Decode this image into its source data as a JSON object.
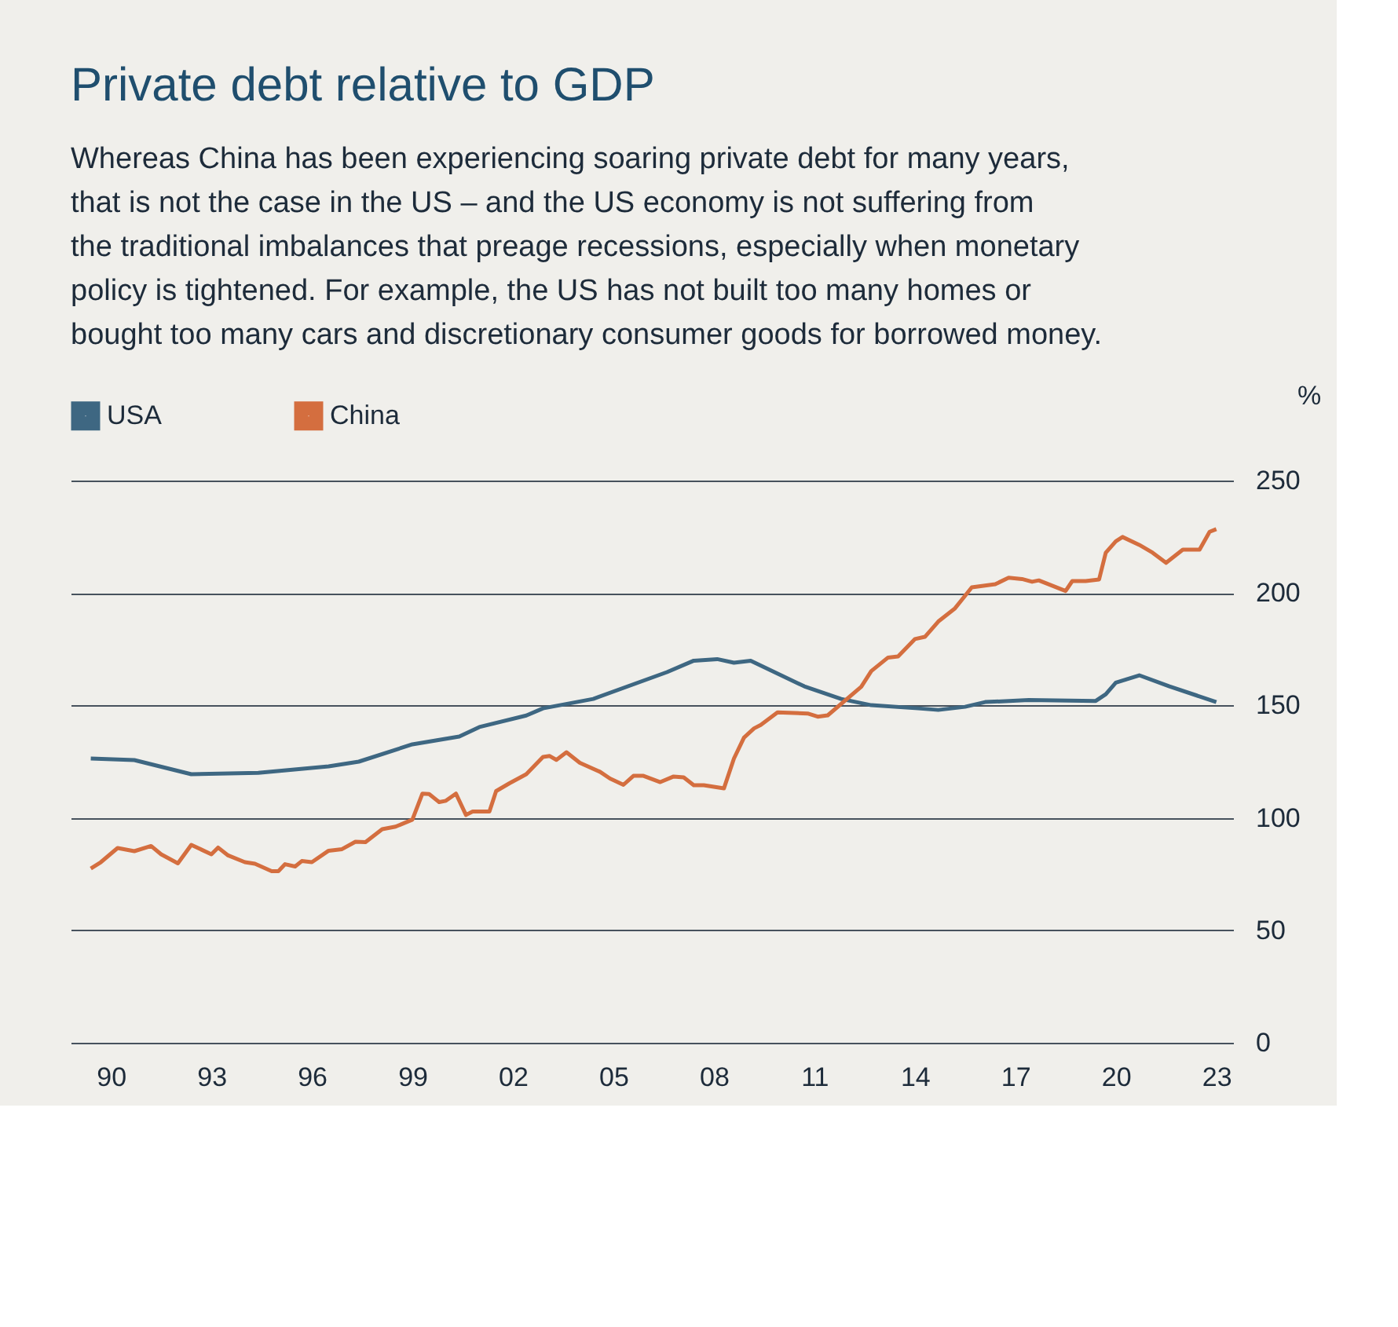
{
  "chart_data": {
    "type": "line",
    "title": "Private debt relative to GDP",
    "subtitle": "Whereas China has been experiencing soaring private debt for many years, that is not the case in the US – and the US economy is not suffering from the traditional imbalances that preage recessions, especially when monetary policy is tightened. For example, the US has not built too many homes or bought too many cars and discretionary consumer goods for borrowed money.",
    "ylabel": "%",
    "xlim": [
      1988.8,
      2023.5
    ],
    "ylim": [
      0,
      250
    ],
    "xticks": [
      {
        "value": 1990,
        "label": "90"
      },
      {
        "value": 1993,
        "label": "93"
      },
      {
        "value": 1996,
        "label": "96"
      },
      {
        "value": 1999,
        "label": "99"
      },
      {
        "value": 2002,
        "label": "02"
      },
      {
        "value": 2005,
        "label": "05"
      },
      {
        "value": 2008,
        "label": "08"
      },
      {
        "value": 2011,
        "label": "11"
      },
      {
        "value": 2014,
        "label": "14"
      },
      {
        "value": 2017,
        "label": "17"
      },
      {
        "value": 2020,
        "label": "20"
      },
      {
        "value": 2023,
        "label": "23"
      }
    ],
    "yticks": [
      0,
      50,
      100,
      150,
      200,
      250
    ],
    "grid": "y",
    "legend": "top left",
    "marker": "none",
    "line_style": "solid",
    "series": [
      {
        "name": "USA",
        "color": "#3e6782",
        "x": [
          1989.4,
          1990.7,
          1992.4,
          1994.4,
          1996.5,
          1997.4,
          1999.0,
          2000.4,
          2001.0,
          2002.4,
          2002.9,
          2004.4,
          2006.6,
          2007.4,
          2008.1,
          2008.6,
          2009.1,
          2010.7,
          2011.8,
          2012.7,
          2014.1,
          2014.7,
          2015.5,
          2016.1,
          2017.4,
          2019.4,
          2019.7,
          2020.0,
          2020.7,
          2021.6,
          2023.0
        ],
        "values": [
          126.4,
          125.7,
          119.4,
          120.0,
          122.9,
          125.0,
          132.7,
          136.2,
          140.4,
          145.5,
          148.7,
          152.9,
          164.8,
          169.9,
          170.6,
          169.0,
          169.9,
          158.5,
          152.9,
          150.1,
          148.7,
          148.0,
          149.4,
          151.5,
          152.4,
          152.0,
          155.0,
          160.1,
          163.4,
          158.5,
          151.5
        ]
      },
      {
        "name": "China",
        "color": "#d46e3f",
        "x": [
          1989.4,
          1989.7,
          1990.2,
          1990.7,
          1991.2,
          1991.5,
          1992.0,
          1992.4,
          1993.0,
          1993.2,
          1993.5,
          1994.0,
          1994.3,
          1994.8,
          1995.0,
          1995.2,
          1995.5,
          1995.7,
          1996.0,
          1996.5,
          1996.9,
          1997.3,
          1997.6,
          1998.1,
          1998.5,
          1999.0,
          1999.3,
          1999.5,
          1999.8,
          2000.0,
          2000.3,
          2000.6,
          2000.8,
          2001.3,
          2001.5,
          2001.9,
          2002.4,
          2002.9,
          2003.1,
          2003.3,
          2003.6,
          2004.0,
          2004.6,
          2004.9,
          2005.3,
          2005.6,
          2005.9,
          2006.4,
          2006.8,
          2007.1,
          2007.4,
          2007.7,
          2008.3,
          2008.6,
          2008.9,
          2009.2,
          2009.4,
          2009.9,
          2010.8,
          2011.1,
          2011.4,
          2012.4,
          2012.7,
          2013.2,
          2013.5,
          2014.0,
          2014.3,
          2014.7,
          2015.2,
          2015.7,
          2016.4,
          2016.8,
          2017.2,
          2017.5,
          2017.7,
          2018.5,
          2018.7,
          2019.1,
          2019.5,
          2019.7,
          2020.0,
          2020.2,
          2020.7,
          2021.1,
          2021.5,
          2022.0,
          2022.5,
          2022.8,
          2023.0
        ],
        "values": [
          77.5,
          80.3,
          86.6,
          85.2,
          87.5,
          83.8,
          79.8,
          88.0,
          83.8,
          86.8,
          83.3,
          80.3,
          79.6,
          76.3,
          76.3,
          79.4,
          78.4,
          80.8,
          80.3,
          85.4,
          86.1,
          89.4,
          89.2,
          95.0,
          96.1,
          99.2,
          110.8,
          110.6,
          107.0,
          107.6,
          110.8,
          101.3,
          102.8,
          102.8,
          111.9,
          115.4,
          119.4,
          127.1,
          127.5,
          125.8,
          129.2,
          124.5,
          120.5,
          117.5,
          114.7,
          118.7,
          118.7,
          115.9,
          118.4,
          118.0,
          114.5,
          114.5,
          113.1,
          126.4,
          135.7,
          139.8,
          141.3,
          146.9,
          146.4,
          145.0,
          145.6,
          158.3,
          165.3,
          171.3,
          171.8,
          179.5,
          180.5,
          187.3,
          193.2,
          202.5,
          203.9,
          206.8,
          206.2,
          205.0,
          205.6,
          200.9,
          205.3,
          205.3,
          206.0,
          217.9,
          223.0,
          224.9,
          221.4,
          217.9,
          213.4,
          219.3,
          219.3,
          227.2,
          228.4
        ]
      }
    ]
  }
}
